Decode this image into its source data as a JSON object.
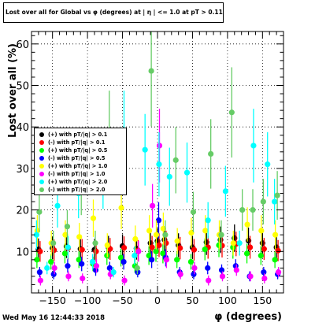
{
  "title": "Lost over all for Global vs φ (degrees) at | η | <= 1.0 at pT > 0.11",
  "footer": "Wed May 16 12:44:33 2018",
  "chart_data": {
    "type": "scatter",
    "xlabel": "φ (degrees)",
    "ylabel": "Lost over all (%)",
    "xlim": [
      -180,
      180
    ],
    "ylim": [
      0,
      63
    ],
    "xticks": [
      -150,
      -100,
      -50,
      0,
      50,
      100,
      150
    ],
    "yticks": [
      10,
      20,
      30,
      40,
      50,
      60
    ],
    "grid": true,
    "legend_position": "left",
    "series": [
      {
        "name": "(+) with pT/|q| > 0.1",
        "color": "#000000",
        "marker": "circle",
        "x": [
          -170,
          -150,
          -130,
          -110,
          -90,
          -70,
          -50,
          -30,
          -10,
          0,
          10,
          30,
          50,
          70,
          90,
          110,
          130,
          150,
          170
        ],
        "y": [
          10.5,
          10.8,
          11.2,
          10.6,
          10.4,
          11.0,
          11.3,
          10.7,
          12.0,
          12.5,
          12.8,
          11.5,
          11.0,
          12.2,
          12.8,
          13.2,
          12.6,
          12.0,
          11.0
        ]
      },
      {
        "name": "(-) with pT/|q| > 0.1",
        "color": "#ff0000",
        "marker": "circle",
        "x": [
          -170,
          -150,
          -130,
          -110,
          -90,
          -70,
          -50,
          -30,
          -10,
          0,
          10,
          30,
          50,
          70,
          90,
          110,
          130,
          150,
          170
        ],
        "y": [
          10.0,
          10.3,
          10.8,
          10.4,
          10.0,
          10.6,
          10.9,
          10.2,
          11.0,
          11.5,
          12.0,
          10.8,
          10.4,
          11.0,
          11.4,
          11.8,
          11.0,
          10.6,
          10.2
        ]
      },
      {
        "name": "(+) with pT/|q| > 0.5",
        "color": "#00ff00",
        "marker": "circle",
        "x": [
          -170,
          -150,
          -130,
          -110,
          -90,
          -70,
          -50,
          -30,
          -10,
          0,
          10,
          30,
          50,
          70,
          90,
          110,
          130,
          150,
          170
        ],
        "y": [
          8.0,
          7.5,
          9.5,
          8.0,
          7.0,
          9.0,
          8.5,
          6.5,
          9.0,
          10.0,
          9.5,
          8.0,
          7.5,
          10.5,
          11.5,
          11.0,
          9.5,
          9.0,
          8.0
        ]
      },
      {
        "name": "(-) with pT/|q| > 0.5",
        "color": "#0000ff",
        "marker": "circle",
        "x": [
          -170,
          -150,
          -130,
          -110,
          -90,
          -70,
          -50,
          -30,
          -10,
          0,
          10,
          30,
          50,
          70,
          90,
          110,
          130,
          150,
          170
        ],
        "y": [
          5.0,
          4.5,
          6.5,
          7.0,
          5.5,
          6.0,
          7.5,
          5.0,
          8.0,
          17.5,
          8.5,
          5.0,
          4.5,
          6.0,
          5.5,
          6.5,
          4.0,
          5.0,
          4.5
        ]
      },
      {
        "name": "(+) with pT/|q| > 1.0",
        "color": "#ffff00",
        "marker": "circle",
        "x": [
          -170,
          -150,
          -130,
          -110,
          -90,
          -70,
          -50,
          -30,
          -10,
          0,
          10,
          30,
          50,
          70,
          90,
          110,
          130,
          150,
          170
        ],
        "y": [
          15.0,
          12.0,
          14.0,
          13.5,
          18.0,
          11.5,
          20.5,
          13.0,
          15.0,
          14.0,
          15.5,
          12.5,
          14.5,
          15.0,
          14.0,
          12.0,
          16.5,
          15.0,
          14.0
        ]
      },
      {
        "name": "(-) with pT/|q| > 1.0",
        "color": "#ff00ff",
        "marker": "circle",
        "x": [
          -170,
          -150,
          -130,
          -110,
          -90,
          -70,
          -50,
          -30,
          -10,
          0,
          10,
          30,
          50,
          70,
          90,
          110,
          130,
          150,
          170
        ],
        "y": [
          3.0,
          6.0,
          4.0,
          3.5,
          6.5,
          4.5,
          3.0,
          10.0,
          21.0,
          35.5,
          8.0,
          4.5,
          6.0,
          3.0,
          4.0,
          5.5,
          4.0,
          3.5,
          5.0
        ]
      },
      {
        "name": "(+) with pT/|q| > 2.0",
        "color": "#00ffff",
        "marker": "circle",
        "x": [
          -170,
          -155,
          -140,
          -125,
          -110,
          -90,
          -75,
          -60,
          -45,
          -30,
          -15,
          5,
          20,
          45,
          75,
          100,
          120,
          140,
          160,
          170
        ],
        "y": [
          14.0,
          6.0,
          21.0,
          11.0,
          24.0,
          7.5,
          27.0,
          5.0,
          39.0,
          9.0,
          34.5,
          31.0,
          28.0,
          29.0,
          17.5,
          24.5,
          12.0,
          35.5,
          31.0,
          22.0
        ]
      },
      {
        "name": "(-) with pT/|q| > 2.0",
        "color": "#66cc66",
        "marker": "circle",
        "x": [
          -170,
          -150,
          -130,
          -110,
          -90,
          -70,
          -50,
          -30,
          -10,
          10,
          25,
          50,
          75,
          90,
          105,
          120,
          135,
          150,
          170
        ],
        "y": [
          19.5,
          12.0,
          16.0,
          25.0,
          12.0,
          39.0,
          31.5,
          6.0,
          53.5,
          14.0,
          32.0,
          19.5,
          33.5,
          14.0,
          43.5,
          20.0,
          20.0,
          22.0,
          23.5
        ]
      }
    ]
  }
}
